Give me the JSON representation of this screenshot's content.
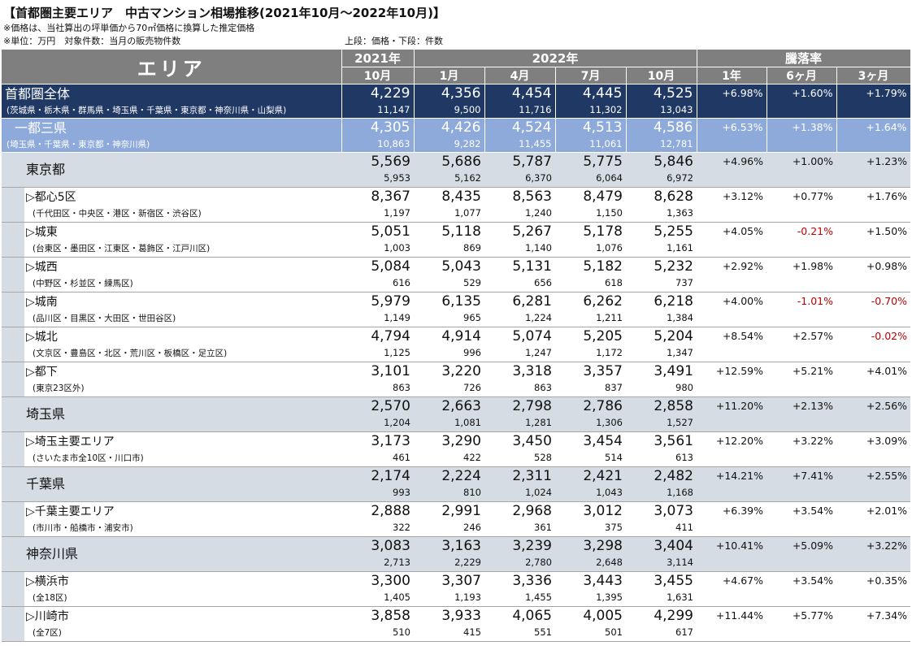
{
  "title": "【首都圏主要エリア　中古マンション相場推移(2021年10月～2022年10月)】",
  "notes": [
    "※価格は、当社算出の坪単価から70㎡価格に換算した推定価格",
    "※単位：万円　対象件数：当月の販売物件数"
  ],
  "legend": "上段：価格・下段：件数",
  "header": {
    "area": "エリア",
    "year2021": "2021年",
    "year2022": "2022年",
    "change_group": "騰落率",
    "months": [
      "10月",
      "1月",
      "4月",
      "7月",
      "10月"
    ],
    "change_periods": [
      "1年",
      "6ヶ月",
      "3ヶ月"
    ]
  },
  "rows": [
    {
      "type": "whole",
      "name": "首都圏全体",
      "desc": "(茨城県・栃木県・群馬県・埼玉県・千葉県・東京都・神奈川県・山梨県)",
      "prices": [
        "4,229",
        "4,356",
        "4,454",
        "4,445",
        "4,525"
      ],
      "counts": [
        "11,147",
        "9,500",
        "11,716",
        "11,302",
        "13,043"
      ],
      "changes": [
        "+6.98%",
        "+1.60%",
        "+1.79%"
      ]
    },
    {
      "type": "itto",
      "name": "一都三県",
      "desc": "(埼玉県・千葉県・東京都・神奈川県)",
      "prices": [
        "4,305",
        "4,426",
        "4,524",
        "4,513",
        "4,586"
      ],
      "counts": [
        "10,863",
        "9,282",
        "11,455",
        "11,061",
        "12,781"
      ],
      "changes": [
        "+6.53%",
        "+1.38%",
        "+1.64%"
      ]
    },
    {
      "type": "pref",
      "name": "東京都",
      "prices": [
        "5,569",
        "5,686",
        "5,787",
        "5,775",
        "5,846"
      ],
      "counts": [
        "5,953",
        "5,162",
        "6,370",
        "6,064",
        "6,972"
      ],
      "changes": [
        "+4.96%",
        "+1.00%",
        "+1.23%"
      ]
    },
    {
      "type": "sub",
      "name": "▷都心5区",
      "desc": "(千代田区・中央区・港区・新宿区・渋谷区)",
      "prices": [
        "8,367",
        "8,435",
        "8,563",
        "8,479",
        "8,628"
      ],
      "counts": [
        "1,197",
        "1,077",
        "1,240",
        "1,150",
        "1,363"
      ],
      "changes": [
        "+3.12%",
        "+0.77%",
        "+1.76%"
      ]
    },
    {
      "type": "sub",
      "name": "▷城東",
      "desc": "(台東区・墨田区・江東区・葛飾区・江戸川区)",
      "prices": [
        "5,051",
        "5,118",
        "5,267",
        "5,178",
        "5,255"
      ],
      "counts": [
        "1,003",
        "869",
        "1,140",
        "1,076",
        "1,161"
      ],
      "changes": [
        "+4.05%",
        "-0.21%",
        "+1.50%"
      ]
    },
    {
      "type": "sub",
      "name": "▷城西",
      "desc": "(中野区・杉並区・練馬区)",
      "prices": [
        "5,084",
        "5,043",
        "5,131",
        "5,182",
        "5,232"
      ],
      "counts": [
        "616",
        "529",
        "656",
        "618",
        "737"
      ],
      "changes": [
        "+2.92%",
        "+1.98%",
        "+0.98%"
      ]
    },
    {
      "type": "sub",
      "name": "▷城南",
      "desc": "(品川区・目黒区・大田区・世田谷区)",
      "prices": [
        "5,979",
        "6,135",
        "6,281",
        "6,262",
        "6,218"
      ],
      "counts": [
        "1,149",
        "965",
        "1,224",
        "1,211",
        "1,384"
      ],
      "changes": [
        "+4.00%",
        "-1.01%",
        "-0.70%"
      ]
    },
    {
      "type": "sub",
      "name": "▷城北",
      "desc": "(文京区・豊島区・北区・荒川区・板橋区・足立区)",
      "prices": [
        "4,794",
        "4,914",
        "5,074",
        "5,205",
        "5,204"
      ],
      "counts": [
        "1,125",
        "996",
        "1,247",
        "1,172",
        "1,347"
      ],
      "changes": [
        "+8.54%",
        "+2.57%",
        "-0.02%"
      ]
    },
    {
      "type": "sub",
      "name": "▷都下",
      "desc": "(東京23区外)",
      "prices": [
        "3,101",
        "3,220",
        "3,318",
        "3,357",
        "3,491"
      ],
      "counts": [
        "863",
        "726",
        "863",
        "837",
        "980"
      ],
      "changes": [
        "+12.59%",
        "+5.21%",
        "+4.01%"
      ]
    },
    {
      "type": "pref",
      "name": "埼玉県",
      "prices": [
        "2,570",
        "2,663",
        "2,798",
        "2,786",
        "2,858"
      ],
      "counts": [
        "1,204",
        "1,081",
        "1,281",
        "1,306",
        "1,527"
      ],
      "changes": [
        "+11.20%",
        "+2.13%",
        "+2.56%"
      ]
    },
    {
      "type": "sub",
      "name": "▷埼玉主要エリア",
      "desc": "(さいたま市全10区・川口市)",
      "prices": [
        "3,173",
        "3,290",
        "3,450",
        "3,454",
        "3,561"
      ],
      "counts": [
        "461",
        "422",
        "528",
        "514",
        "613"
      ],
      "changes": [
        "+12.20%",
        "+3.22%",
        "+3.09%"
      ]
    },
    {
      "type": "pref",
      "name": "千葉県",
      "prices": [
        "2,174",
        "2,224",
        "2,311",
        "2,421",
        "2,482"
      ],
      "counts": [
        "993",
        "810",
        "1,024",
        "1,043",
        "1,168"
      ],
      "changes": [
        "+14.21%",
        "+7.41%",
        "+2.55%"
      ]
    },
    {
      "type": "sub",
      "name": "▷千葉主要エリア",
      "desc": "(市川市・船橋市・浦安市)",
      "prices": [
        "2,888",
        "2,991",
        "2,968",
        "3,012",
        "3,073"
      ],
      "counts": [
        "322",
        "246",
        "361",
        "375",
        "411"
      ],
      "changes": [
        "+6.39%",
        "+3.54%",
        "+2.01%"
      ]
    },
    {
      "type": "pref",
      "name": "神奈川県",
      "prices": [
        "3,083",
        "3,163",
        "3,239",
        "3,298",
        "3,404"
      ],
      "counts": [
        "2,713",
        "2,229",
        "2,780",
        "2,648",
        "3,114"
      ],
      "changes": [
        "+10.41%",
        "+5.09%",
        "+3.22%"
      ]
    },
    {
      "type": "sub",
      "name": "▷横浜市",
      "desc": "(全18区)",
      "prices": [
        "3,300",
        "3,307",
        "3,336",
        "3,443",
        "3,455"
      ],
      "counts": [
        "1,405",
        "1,193",
        "1,455",
        "1,395",
        "1,631"
      ],
      "changes": [
        "+4.67%",
        "+3.54%",
        "+0.35%"
      ]
    },
    {
      "type": "sub",
      "name": "▷川崎市",
      "desc": "(全7区)",
      "prices": [
        "3,858",
        "3,933",
        "4,065",
        "4,005",
        "4,299"
      ],
      "counts": [
        "510",
        "415",
        "551",
        "501",
        "617"
      ],
      "changes": [
        "+11.44%",
        "+5.77%",
        "+7.34%"
      ]
    }
  ],
  "colors": {
    "header_bg": "#7f7f7f",
    "whole_bg": "#1f3864",
    "itto_bg": "#8eaadb",
    "pref_bg": "#d6dce4",
    "negative": "#c00000"
  }
}
